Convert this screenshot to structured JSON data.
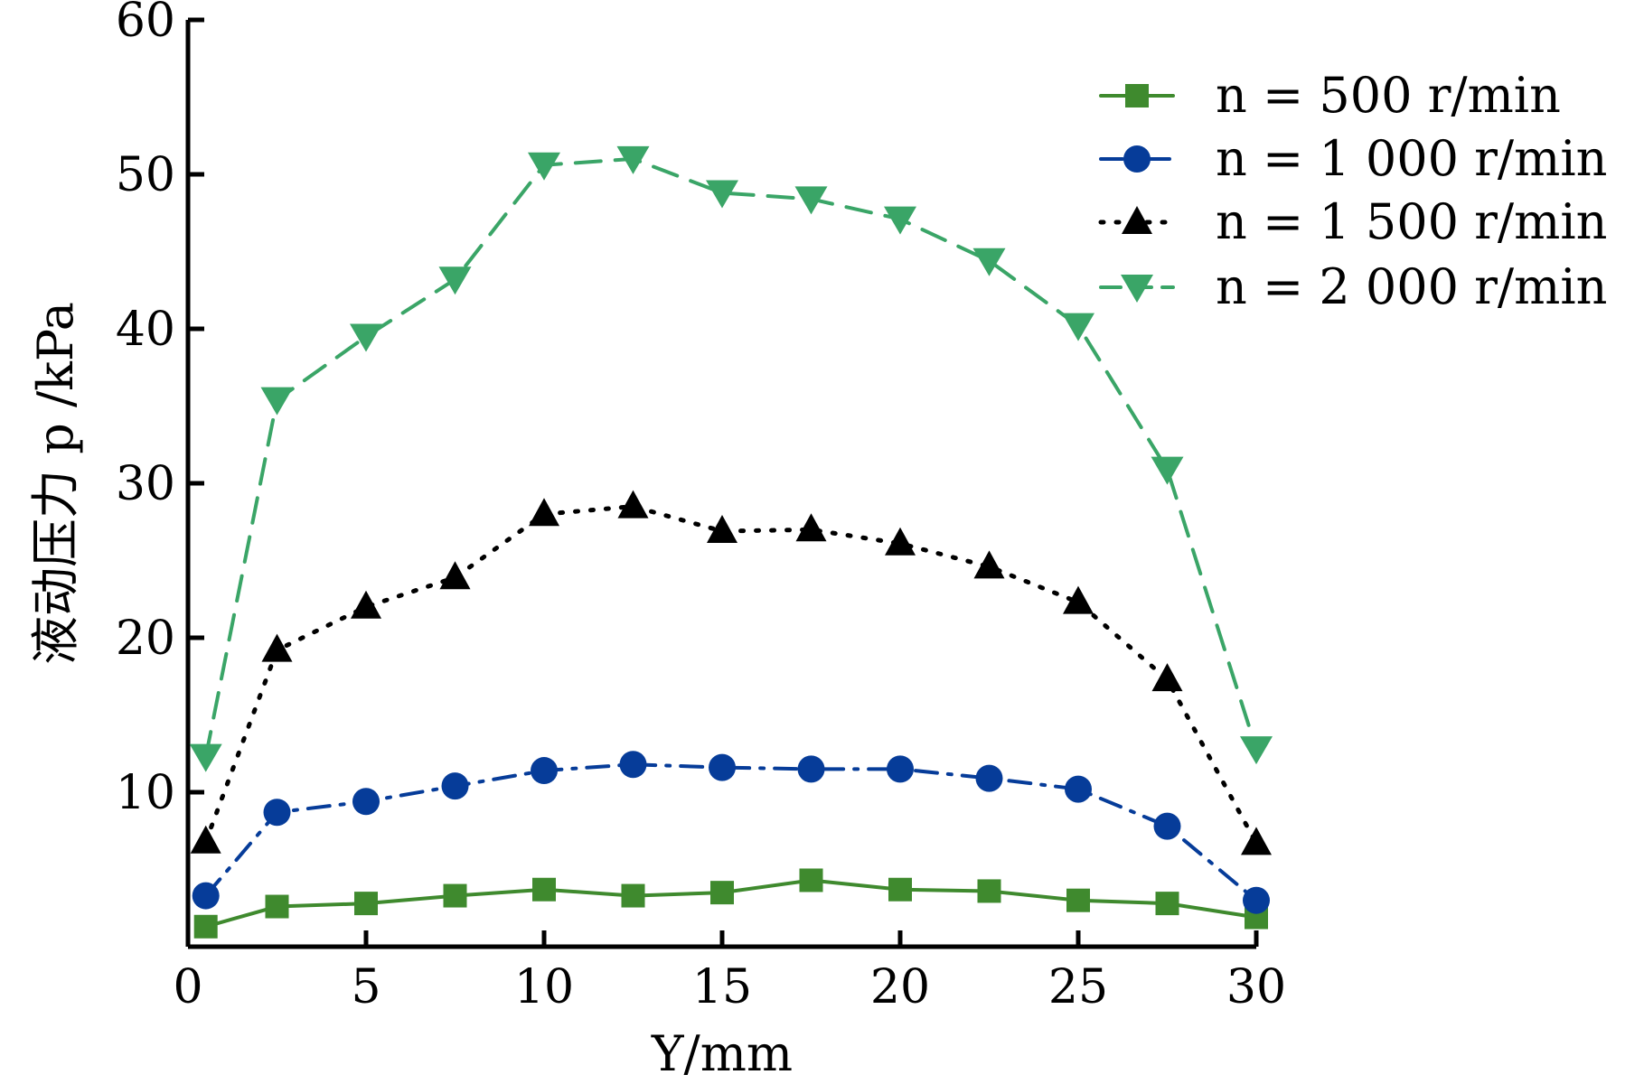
{
  "chart_data": {
    "type": "line",
    "xlabel": "Y/mm",
    "ylabel": "液动压力 p /kPa",
    "xlim": [
      0,
      30
    ],
    "ylim": [
      0,
      60
    ],
    "x_ticks": [
      "0",
      "5",
      "10",
      "15",
      "20",
      "25",
      "30"
    ],
    "y_ticks": [
      "10",
      "20",
      "30",
      "40",
      "50",
      "60"
    ],
    "grid": false,
    "legend_position": "top-right",
    "x": [
      0.5,
      2.5,
      5,
      7.5,
      10,
      12.5,
      15,
      17.5,
      20,
      22.5,
      25,
      27.5,
      30
    ],
    "series": [
      {
        "name": "n = 500 r/min",
        "color": "#3f8a2e",
        "line_style": "solid",
        "marker": "square",
        "values": [
          1.3,
          2.6,
          2.8,
          3.3,
          3.7,
          3.3,
          3.5,
          4.3,
          3.7,
          3.6,
          3.0,
          2.8,
          1.9
        ]
      },
      {
        "name": "n = 1 000 r/min",
        "color": "#063c99",
        "line_style": "dashdot",
        "marker": "circle",
        "values": [
          3.3,
          8.7,
          9.4,
          10.4,
          11.4,
          11.8,
          11.6,
          11.5,
          11.5,
          10.9,
          10.2,
          7.8,
          3.0
        ]
      },
      {
        "name": "n = 1 500 r/min",
        "color": "#000000",
        "line_style": "dotted",
        "marker": "triangle-up",
        "values": [
          6.8,
          19.2,
          22.0,
          23.9,
          28.0,
          28.5,
          26.9,
          27.0,
          26.1,
          24.6,
          22.3,
          17.3,
          6.7
        ]
      },
      {
        "name": "n = 2 000 r/min",
        "color": "#3aa567",
        "line_style": "dashed",
        "marker": "triangle-down",
        "values": [
          12.3,
          35.4,
          39.5,
          43.2,
          50.6,
          51.0,
          48.8,
          48.4,
          47.1,
          44.4,
          40.2,
          30.9,
          12.8
        ]
      }
    ]
  }
}
